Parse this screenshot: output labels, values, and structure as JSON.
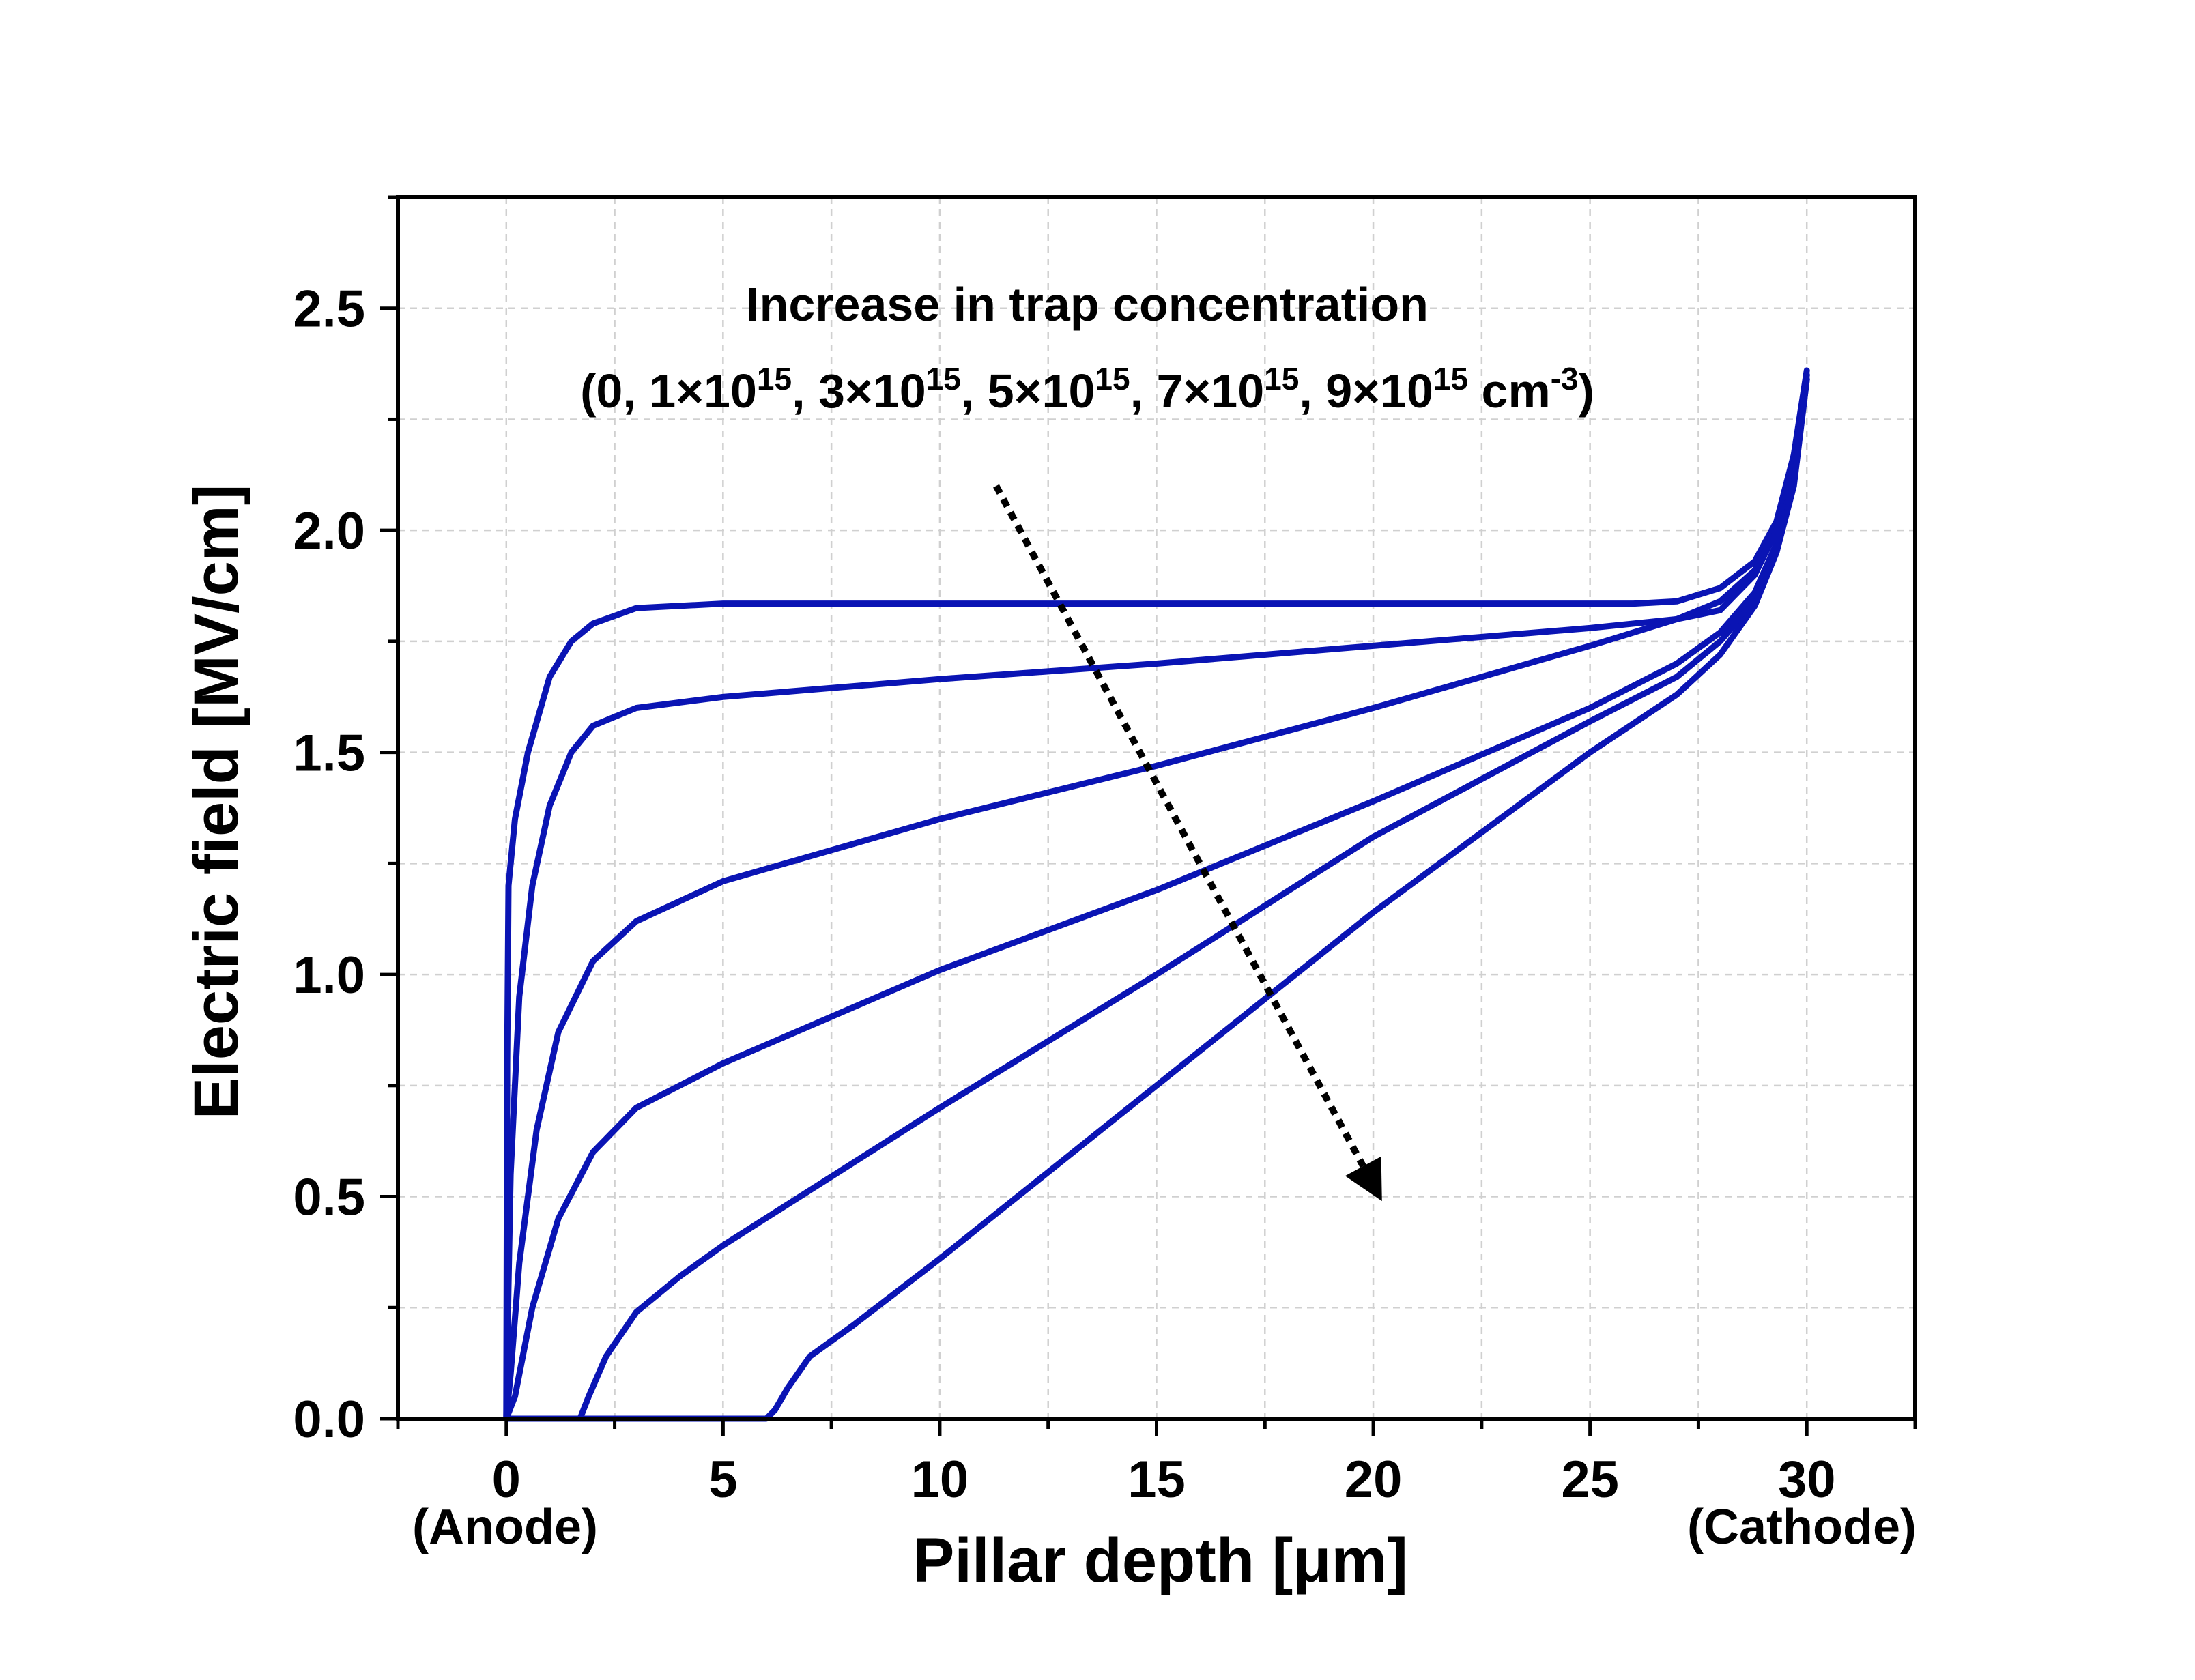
{
  "chart_data": {
    "type": "line",
    "xlabel": "Pillar depth [μm]",
    "ylabel": "Electric field [MV/cm]",
    "xlim": [
      -2.5,
      32.5
    ],
    "ylim": [
      0,
      2.75
    ],
    "xticks": [
      "0",
      "5",
      "10",
      "15",
      "20",
      "25",
      "30"
    ],
    "yticks": [
      "0.0",
      "0.5",
      "1.0",
      "1.5",
      "2.0",
      "2.5"
    ],
    "x_end_labels": {
      "left": "(Anode)",
      "right": "(Cathode)"
    },
    "grid": true,
    "line_color": "#0a14b4",
    "annotation": {
      "line1": "Increase in trap concentration",
      "line2_parts": [
        {
          "t": "(0, 1×10"
        },
        {
          "t": "15",
          "sup": true
        },
        {
          "t": ", 3×10"
        },
        {
          "t": "15",
          "sup": true
        },
        {
          "t": ", 5×10"
        },
        {
          "t": "15",
          "sup": true
        },
        {
          "t": ", 7×10"
        },
        {
          "t": "15",
          "sup": true
        },
        {
          "t": ", 9×10"
        },
        {
          "t": "15",
          "sup": true
        },
        {
          "t": " cm"
        },
        {
          "t": "-3",
          "sup": true
        },
        {
          "t": ")"
        }
      ],
      "arrow_from": [
        11.3,
        2.1
      ],
      "arrow_to": [
        20.2,
        0.49
      ]
    },
    "series": [
      {
        "label": "0",
        "points": [
          [
            0,
            0
          ],
          [
            0.02,
            0.8
          ],
          [
            0.05,
            1.2
          ],
          [
            0.2,
            1.35
          ],
          [
            0.5,
            1.5
          ],
          [
            1,
            1.67
          ],
          [
            1.5,
            1.75
          ],
          [
            2,
            1.79
          ],
          [
            3,
            1.825
          ],
          [
            5,
            1.835
          ],
          [
            10,
            1.835
          ],
          [
            20,
            1.835
          ],
          [
            26,
            1.835
          ],
          [
            27,
            1.84
          ],
          [
            28,
            1.87
          ],
          [
            28.8,
            1.93
          ],
          [
            29.3,
            2.02
          ],
          [
            29.7,
            2.17
          ],
          [
            30,
            2.36
          ]
        ]
      },
      {
        "label": "1×10^15",
        "points": [
          [
            0,
            0
          ],
          [
            0.05,
            0.3
          ],
          [
            0.1,
            0.55
          ],
          [
            0.3,
            0.95
          ],
          [
            0.6,
            1.2
          ],
          [
            1,
            1.38
          ],
          [
            1.5,
            1.5
          ],
          [
            2,
            1.56
          ],
          [
            3,
            1.6
          ],
          [
            5,
            1.625
          ],
          [
            10,
            1.665
          ],
          [
            15,
            1.7
          ],
          [
            20,
            1.74
          ],
          [
            25,
            1.78
          ],
          [
            27,
            1.8
          ],
          [
            28,
            1.82
          ],
          [
            28.8,
            1.9
          ],
          [
            29.3,
            2.0
          ],
          [
            29.7,
            2.15
          ],
          [
            30,
            2.35
          ]
        ]
      },
      {
        "label": "3×10^15",
        "points": [
          [
            0,
            0
          ],
          [
            0.1,
            0.1
          ],
          [
            0.3,
            0.35
          ],
          [
            0.7,
            0.65
          ],
          [
            1.2,
            0.87
          ],
          [
            2,
            1.03
          ],
          [
            3,
            1.12
          ],
          [
            5,
            1.21
          ],
          [
            10,
            1.35
          ],
          [
            15,
            1.47
          ],
          [
            20,
            1.6
          ],
          [
            25,
            1.74
          ],
          [
            27,
            1.8
          ],
          [
            28,
            1.84
          ],
          [
            28.8,
            1.91
          ],
          [
            29.3,
            2.0
          ],
          [
            29.7,
            2.15
          ],
          [
            30,
            2.35
          ]
        ]
      },
      {
        "label": "5×10^15",
        "points": [
          [
            0,
            0
          ],
          [
            0.2,
            0.05
          ],
          [
            0.6,
            0.25
          ],
          [
            1.2,
            0.45
          ],
          [
            2,
            0.6
          ],
          [
            3,
            0.7
          ],
          [
            5,
            0.8
          ],
          [
            10,
            1.01
          ],
          [
            15,
            1.19
          ],
          [
            20,
            1.39
          ],
          [
            25,
            1.6
          ],
          [
            27,
            1.7
          ],
          [
            28,
            1.77
          ],
          [
            28.8,
            1.86
          ],
          [
            29.3,
            1.97
          ],
          [
            29.7,
            2.12
          ],
          [
            30,
            2.35
          ]
        ]
      },
      {
        "label": "7×10^15",
        "points": [
          [
            1.7,
            0
          ],
          [
            1.9,
            0.05
          ],
          [
            2.3,
            0.14
          ],
          [
            3,
            0.24
          ],
          [
            4,
            0.32
          ],
          [
            5,
            0.39
          ],
          [
            10,
            0.7
          ],
          [
            15,
            1.0
          ],
          [
            20,
            1.31
          ],
          [
            25,
            1.57
          ],
          [
            27,
            1.67
          ],
          [
            28,
            1.75
          ],
          [
            28.8,
            1.84
          ],
          [
            29.3,
            1.96
          ],
          [
            29.7,
            2.11
          ],
          [
            30,
            2.34
          ]
        ]
      },
      {
        "label": "9×10^15",
        "points": [
          [
            0,
            0
          ],
          [
            6,
            0
          ],
          [
            6.2,
            0.02
          ],
          [
            6.5,
            0.07
          ],
          [
            7,
            0.14
          ],
          [
            8,
            0.21
          ],
          [
            10,
            0.36
          ],
          [
            15,
            0.75
          ],
          [
            20,
            1.14
          ],
          [
            25,
            1.5
          ],
          [
            27,
            1.63
          ],
          [
            28,
            1.72
          ],
          [
            28.8,
            1.83
          ],
          [
            29.3,
            1.95
          ],
          [
            29.7,
            2.1
          ],
          [
            30,
            2.34
          ]
        ]
      }
    ]
  }
}
